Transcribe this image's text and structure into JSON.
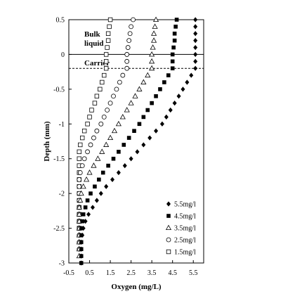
{
  "chart_data": {
    "type": "scatter",
    "xlabel": "Oxygen  (mg/L)",
    "ylabel": "Depth  (mm)",
    "xlim": [
      -0.5,
      6
    ],
    "ylim": [
      -3,
      0.5
    ],
    "xticks": [
      "-0.5",
      "0.5",
      "1.5",
      "2.5",
      "3.5",
      "4.5",
      "5.5"
    ],
    "yticks": [
      "0.5",
      "0",
      "-0.5",
      "-1",
      "-1.5",
      "-2",
      "-2.5",
      "-3"
    ],
    "grid": false,
    "legend_position": "bottom-right",
    "annotations": {
      "bulk_liquid_line1": "Bulk",
      "bulk_liquid_line2": "liquid",
      "carrier": "Carrier",
      "surface_line_depth": 0,
      "carrier_line_depth": -0.2
    },
    "series": [
      {
        "name": "5.5mg/l",
        "marker": "diamond",
        "color": "#000000",
        "points": [
          [
            5.6,
            0.5
          ],
          [
            5.6,
            0.4
          ],
          [
            5.6,
            0.3
          ],
          [
            5.6,
            0.2
          ],
          [
            5.6,
            0.1
          ],
          [
            5.6,
            0.0
          ],
          [
            5.6,
            -0.1
          ],
          [
            5.6,
            -0.2
          ],
          [
            5.4,
            -0.3
          ],
          [
            5.2,
            -0.4
          ],
          [
            5.0,
            -0.5
          ],
          [
            4.8,
            -0.6
          ],
          [
            4.6,
            -0.7
          ],
          [
            4.4,
            -0.8
          ],
          [
            4.2,
            -0.9
          ],
          [
            4.0,
            -1.0
          ],
          [
            3.7,
            -1.1
          ],
          [
            3.4,
            -1.2
          ],
          [
            3.1,
            -1.3
          ],
          [
            2.8,
            -1.4
          ],
          [
            2.5,
            -1.5
          ],
          [
            2.2,
            -1.6
          ],
          [
            1.9,
            -1.7
          ],
          [
            1.6,
            -1.8
          ],
          [
            1.3,
            -1.9
          ],
          [
            1.05,
            -2.0
          ],
          [
            0.85,
            -2.1
          ],
          [
            0.65,
            -2.2
          ],
          [
            0.45,
            -2.3
          ],
          [
            0.3,
            -2.4
          ],
          [
            0.2,
            -2.5
          ],
          [
            0.15,
            -2.6
          ],
          [
            0.1,
            -2.7
          ],
          [
            0.1,
            -2.8
          ],
          [
            0.1,
            -2.9
          ],
          [
            0.1,
            -3.0
          ]
        ]
      },
      {
        "name": "4.5mg/l",
        "marker": "square-filled",
        "color": "#000000",
        "points": [
          [
            4.7,
            0.5
          ],
          [
            4.65,
            0.4
          ],
          [
            4.6,
            0.3
          ],
          [
            4.6,
            0.2
          ],
          [
            4.55,
            0.1
          ],
          [
            4.5,
            0.0
          ],
          [
            4.5,
            -0.1
          ],
          [
            4.5,
            -0.2
          ],
          [
            4.3,
            -0.3
          ],
          [
            4.1,
            -0.4
          ],
          [
            3.9,
            -0.5
          ],
          [
            3.7,
            -0.6
          ],
          [
            3.5,
            -0.7
          ],
          [
            3.3,
            -0.8
          ],
          [
            3.1,
            -0.9
          ],
          [
            2.9,
            -1.0
          ],
          [
            2.65,
            -1.1
          ],
          [
            2.4,
            -1.2
          ],
          [
            2.15,
            -1.3
          ],
          [
            1.9,
            -1.4
          ],
          [
            1.65,
            -1.5
          ],
          [
            1.4,
            -1.6
          ],
          [
            1.15,
            -1.7
          ],
          [
            0.95,
            -1.8
          ],
          [
            0.75,
            -1.9
          ],
          [
            0.55,
            -2.0
          ],
          [
            0.4,
            -2.1
          ],
          [
            0.3,
            -2.2
          ],
          [
            0.2,
            -2.3
          ],
          [
            0.15,
            -2.4
          ],
          [
            0.1,
            -2.5
          ],
          [
            0.1,
            -2.6
          ],
          [
            0.1,
            -2.7
          ],
          [
            0.1,
            -2.8
          ],
          [
            0.1,
            -2.9
          ],
          [
            0.1,
            -3.0
          ]
        ]
      },
      {
        "name": "3.5mg/l",
        "marker": "triangle-open",
        "color": "#000000",
        "points": [
          [
            3.7,
            0.5
          ],
          [
            3.65,
            0.4
          ],
          [
            3.6,
            0.3
          ],
          [
            3.6,
            0.2
          ],
          [
            3.55,
            0.1
          ],
          [
            3.5,
            0.0
          ],
          [
            3.5,
            -0.1
          ],
          [
            3.5,
            -0.2
          ],
          [
            3.3,
            -0.3
          ],
          [
            3.1,
            -0.4
          ],
          [
            2.9,
            -0.5
          ],
          [
            2.7,
            -0.6
          ],
          [
            2.5,
            -0.7
          ],
          [
            2.3,
            -0.8
          ],
          [
            2.1,
            -0.9
          ],
          [
            1.9,
            -1.0
          ],
          [
            1.7,
            -1.1
          ],
          [
            1.5,
            -1.2
          ],
          [
            1.3,
            -1.3
          ],
          [
            1.1,
            -1.4
          ],
          [
            0.9,
            -1.5
          ],
          [
            0.7,
            -1.6
          ],
          [
            0.5,
            -1.7
          ],
          [
            0.35,
            -1.8
          ],
          [
            0.2,
            -1.9
          ],
          [
            0.1,
            -2.0
          ],
          [
            0.05,
            -2.1
          ],
          [
            0.0,
            -2.2
          ],
          [
            0.0,
            -2.3
          ],
          [
            0.0,
            -2.4
          ],
          [
            0.0,
            -2.5
          ],
          [
            0.0,
            -2.6
          ],
          [
            0.0,
            -2.7
          ],
          [
            0.0,
            -2.8
          ],
          [
            0.0,
            -2.9
          ]
        ]
      },
      {
        "name": "2.5mg/l",
        "marker": "circle-open",
        "color": "#000000",
        "points": [
          [
            2.6,
            0.5
          ],
          [
            2.5,
            0.4
          ],
          [
            2.45,
            0.3
          ],
          [
            2.4,
            0.2
          ],
          [
            2.35,
            0.1
          ],
          [
            2.3,
            0.0
          ],
          [
            2.3,
            -0.1
          ],
          [
            2.3,
            -0.2
          ],
          [
            2.1,
            -0.3
          ],
          [
            1.95,
            -0.4
          ],
          [
            1.8,
            -0.5
          ],
          [
            1.65,
            -0.6
          ],
          [
            1.5,
            -0.7
          ],
          [
            1.35,
            -0.8
          ],
          [
            1.2,
            -0.9
          ],
          [
            1.05,
            -1.0
          ],
          [
            0.85,
            -1.1
          ],
          [
            0.7,
            -1.2
          ],
          [
            0.55,
            -1.3
          ],
          [
            0.4,
            -1.4
          ],
          [
            0.25,
            -1.5
          ],
          [
            0.15,
            -1.6
          ],
          [
            0.05,
            -1.7
          ],
          [
            0.0,
            -1.8
          ],
          [
            0.0,
            -1.9
          ],
          [
            0.0,
            -2.0
          ],
          [
            0.0,
            -2.1
          ],
          [
            0.0,
            -2.2
          ],
          [
            0.0,
            -2.3
          ],
          [
            0.0,
            -2.4
          ],
          [
            0.0,
            -2.5
          ],
          [
            0.0,
            -2.6
          ],
          [
            0.0,
            -2.7
          ],
          [
            0.0,
            -2.8
          ]
        ]
      },
      {
        "name": "1.5mg/l",
        "marker": "square-open",
        "color": "#000000",
        "points": [
          [
            1.5,
            0.5
          ],
          [
            1.45,
            0.4
          ],
          [
            1.4,
            0.3
          ],
          [
            1.4,
            0.2
          ],
          [
            1.35,
            0.1
          ],
          [
            1.3,
            0.0
          ],
          [
            1.3,
            -0.1
          ],
          [
            1.3,
            -0.2
          ],
          [
            1.2,
            -0.3
          ],
          [
            1.1,
            -0.4
          ],
          [
            1.0,
            -0.5
          ],
          [
            0.85,
            -0.6
          ],
          [
            0.75,
            -0.7
          ],
          [
            0.6,
            -0.8
          ],
          [
            0.5,
            -0.9
          ],
          [
            0.4,
            -1.0
          ],
          [
            0.25,
            -1.1
          ],
          [
            0.15,
            -1.2
          ],
          [
            0.05,
            -1.3
          ],
          [
            0.0,
            -1.4
          ],
          [
            0.0,
            -1.5
          ],
          [
            0.0,
            -1.6
          ],
          [
            0.0,
            -1.7
          ],
          [
            0.0,
            -1.8
          ],
          [
            0.0,
            -1.9
          ],
          [
            0.0,
            -2.0
          ],
          [
            0.0,
            -2.1
          ],
          [
            0.0,
            -2.2
          ],
          [
            0.0,
            -2.3
          ],
          [
            0.0,
            -2.4
          ],
          [
            0.0,
            -2.5
          ]
        ]
      }
    ]
  }
}
